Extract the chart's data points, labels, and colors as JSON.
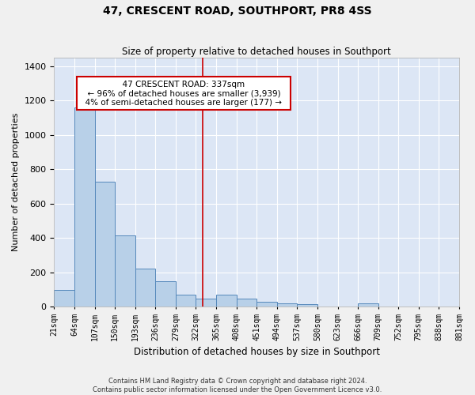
{
  "title": "47, CRESCENT ROAD, SOUTHPORT, PR8 4SS",
  "subtitle": "Size of property relative to detached houses in Southport",
  "xlabel": "Distribution of detached houses by size in Southport",
  "ylabel": "Number of detached properties",
  "footer_line1": "Contains HM Land Registry data © Crown copyright and database right 2024.",
  "footer_line2": "Contains public sector information licensed under the Open Government Licence v3.0.",
  "annotation_line1": "47 CRESCENT ROAD: 337sqm",
  "annotation_line2": "← 96% of detached houses are smaller (3,939)",
  "annotation_line3": "4% of semi-detached houses are larger (177) →",
  "bin_edges": [
    21,
    64,
    107,
    150,
    193,
    236,
    279,
    322,
    365,
    408,
    451,
    494,
    537,
    580,
    623,
    666,
    709,
    752,
    795,
    838,
    881
  ],
  "bar_heights": [
    100,
    1160,
    730,
    415,
    220,
    150,
    70,
    45,
    70,
    45,
    30,
    20,
    15,
    0,
    0,
    20,
    0,
    0,
    0,
    0
  ],
  "red_line_x": 337,
  "bar_color": "#b8d0e8",
  "bar_edge_color": "#5588bb",
  "red_line_color": "#cc0000",
  "background_color": "#dce6f5",
  "annotation_box_color": "#ffffff",
  "annotation_box_edge": "#cc0000",
  "ylim": [
    0,
    1450
  ],
  "yticks": [
    0,
    200,
    400,
    600,
    800,
    1000,
    1200,
    1400
  ],
  "figsize": [
    6.0,
    5.0
  ],
  "dpi": 100
}
